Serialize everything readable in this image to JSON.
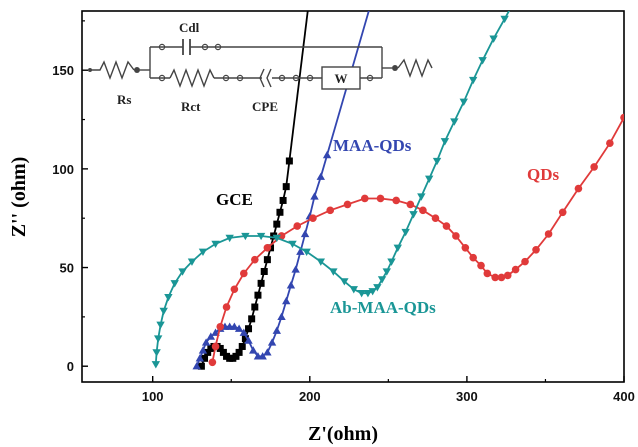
{
  "chart_data": {
    "type": "scatter",
    "title": "",
    "xlabel": "Z'(ohm)",
    "ylabel": "Z'' (ohm)",
    "xlim": [
      55,
      400
    ],
    "ylim": [
      -8,
      180
    ],
    "xticks": [
      100,
      200,
      300,
      400
    ],
    "yticks": [
      0,
      50,
      100,
      150
    ],
    "grid": false,
    "series": [
      {
        "name": "GCE",
        "color": "#000000",
        "marker": "square",
        "label_position": "left of curve, mid-height",
        "x": [
          131,
          133,
          135,
          137,
          139,
          141,
          143,
          145,
          147,
          149,
          151,
          153,
          155,
          157,
          159,
          161,
          163,
          165,
          167,
          169,
          171,
          173,
          175,
          177,
          179,
          181,
          183,
          185,
          187
        ],
        "y": [
          0,
          4,
          7,
          9,
          10,
          10,
          9,
          7,
          5,
          4,
          4,
          5,
          7,
          10,
          14,
          19,
          24,
          30,
          36,
          42,
          48,
          54,
          60,
          66,
          72,
          78,
          84,
          91,
          104
        ]
      },
      {
        "name": "MAA-QDs",
        "color": "#3346b0",
        "marker": "triangle-up",
        "label_position": "above curve, right",
        "x": [
          128,
          130,
          132,
          134,
          137,
          140,
          143,
          146,
          149,
          152,
          155,
          158,
          161,
          164,
          167,
          170,
          173,
          176,
          179,
          182,
          185,
          188,
          191,
          194,
          197,
          200,
          203,
          207,
          211
        ],
        "y": [
          0,
          4,
          8,
          12,
          15,
          17,
          19,
          20,
          20,
          20,
          19,
          17,
          13,
          8,
          5,
          5,
          7,
          12,
          18,
          25,
          33,
          41,
          49,
          58,
          67,
          76,
          86,
          96,
          107
        ]
      },
      {
        "name": "QDs",
        "color": "#e03a3a",
        "marker": "circle",
        "label_position": "upper right",
        "x": [
          138,
          140,
          143,
          147,
          152,
          158,
          165,
          173,
          182,
          192,
          202,
          213,
          224,
          235,
          245,
          255,
          264,
          272,
          280,
          287,
          293,
          299,
          304,
          309,
          313,
          318,
          322,
          326,
          331,
          337,
          344,
          352,
          361,
          371,
          381,
          391,
          400
        ],
        "y": [
          2,
          10,
          20,
          30,
          39,
          47,
          54,
          60,
          66,
          71,
          75,
          79,
          82,
          85,
          85,
          84,
          82,
          79,
          75,
          71,
          66,
          60,
          55,
          51,
          47,
          45,
          45,
          46,
          49,
          53,
          59,
          67,
          78,
          90,
          101,
          113,
          126
        ]
      },
      {
        "name": "Ab-MAA-QDs",
        "color": "#1a9696",
        "marker": "triangle-down",
        "label_position": "below minimum, center",
        "x": [
          102,
          102.5,
          103.5,
          105,
          107,
          110,
          114,
          119,
          125,
          132,
          140,
          149,
          159,
          169,
          179,
          189,
          198,
          207,
          215,
          222,
          228,
          233,
          237,
          240,
          243,
          246,
          249,
          252,
          256,
          261,
          266,
          271,
          276,
          281,
          286,
          292,
          298,
          304,
          310,
          317,
          324,
          331,
          338
        ],
        "y": [
          1,
          7,
          14,
          21,
          28,
          35,
          42,
          48,
          53,
          58,
          62,
          65,
          66,
          66,
          65,
          62,
          58,
          53,
          48,
          43,
          39,
          37,
          37,
          38,
          40,
          44,
          48,
          53,
          60,
          68,
          77,
          86,
          95,
          104,
          114,
          124,
          134,
          145,
          155,
          166,
          176,
          186,
          196
        ]
      }
    ],
    "inset": {
      "type": "equivalent-circuit",
      "labels": [
        "Rs",
        "Cdl",
        "Rct",
        "CPE",
        "W"
      ]
    }
  }
}
